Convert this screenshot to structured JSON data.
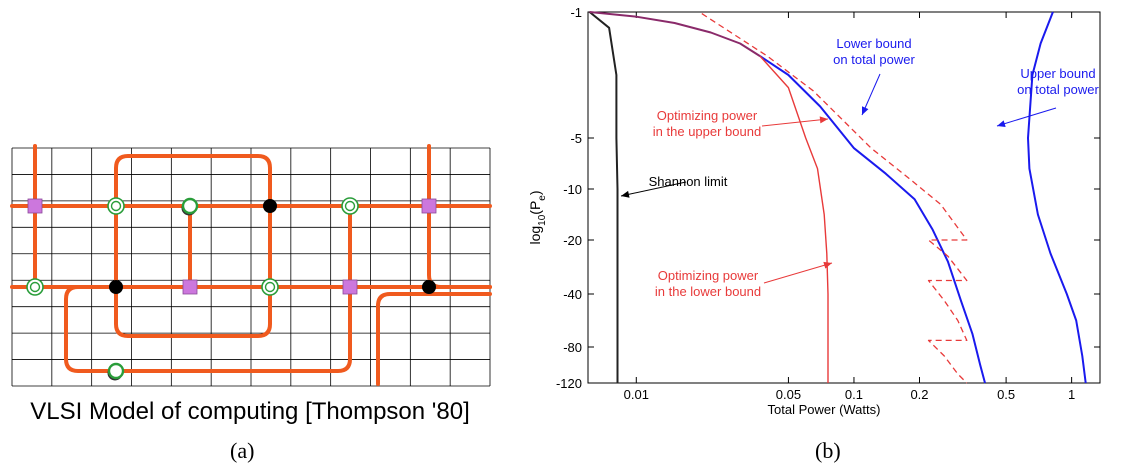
{
  "panel_a": {
    "caption": "VLSI Model of computing [Thompson '80]",
    "label": "(a)",
    "colors": {
      "wire": "#f05a1e",
      "grid": "#000000",
      "square_node": "#cc77dd",
      "ring_node": "#2a9d3a",
      "dot_node": "#000000"
    }
  },
  "panel_b": {
    "label": "(b)",
    "chart_data": {
      "type": "line",
      "title": "",
      "xlabel": "Total Power (Watts)",
      "ylabel": "log10(Pe)",
      "ylabel_main": "log",
      "ylabel_sub1": "10",
      "ylabel_mid": "(P",
      "ylabel_sub2": "e",
      "ylabel_end": ")",
      "xscale": "log",
      "xlim": [
        0.006,
        1.35
      ],
      "xticks": [
        "0.01",
        "0.05",
        "0.1",
        "0.2",
        "0.5",
        "1"
      ],
      "yticks": [
        "-1",
        "-5",
        "-10",
        "-20",
        "-40",
        "-80",
        "-120"
      ],
      "series": [
        {
          "color": "#222222",
          "style": "solid",
          "points": [
            [
              0.0061,
              -1
            ],
            [
              0.0075,
              -1.5
            ],
            [
              0.0081,
              -3
            ],
            [
              0.0081,
              -5
            ],
            [
              0.0082,
              -10
            ],
            [
              0.0082,
              -20
            ],
            [
              0.0082,
              -40
            ],
            [
              0.0082,
              -80
            ],
            [
              0.0082,
              -120
            ]
          ]
        },
        {
          "color": "#8a2a6a",
          "style": "solid",
          "points": [
            [
              0.0061,
              -1
            ],
            [
              0.01,
              -1.15
            ],
            [
              0.015,
              -1.35
            ],
            [
              0.022,
              -1.65
            ],
            [
              0.03,
              -2.0
            ],
            [
              0.037,
              -2.4
            ]
          ]
        },
        {
          "color": "#1a1aee",
          "style": "solid",
          "points": [
            [
              0.037,
              -2.4
            ],
            [
              0.05,
              -3.0
            ],
            [
              0.07,
              -4.0
            ],
            [
              0.1,
              -6.0
            ],
            [
              0.14,
              -8.5
            ],
            [
              0.19,
              -12
            ],
            [
              0.23,
              -18
            ],
            [
              0.27,
              -28
            ],
            [
              0.31,
              -45
            ],
            [
              0.35,
              -70
            ],
            [
              0.38,
              -100
            ],
            [
              0.4,
              -120
            ]
          ]
        },
        {
          "color": "#1a1aee",
          "style": "solid",
          "points": [
            [
              0.82,
              -1
            ],
            [
              0.72,
              -2.0
            ],
            [
              0.66,
              -3.0
            ],
            [
              0.63,
              -5
            ],
            [
              0.64,
              -8
            ],
            [
              0.7,
              -15
            ],
            [
              0.8,
              -25
            ],
            [
              0.95,
              -40
            ],
            [
              1.05,
              -60
            ],
            [
              1.12,
              -90
            ],
            [
              1.16,
              -120
            ]
          ]
        },
        {
          "color": "#e83a3a",
          "style": "solid",
          "width": 1.4,
          "points": [
            [
              0.037,
              -2.4
            ],
            [
              0.05,
              -3.4
            ],
            [
              0.06,
              -5
            ],
            [
              0.068,
              -8
            ],
            [
              0.073,
              -15
            ],
            [
              0.075,
              -25
            ],
            [
              0.076,
              -40
            ],
            [
              0.076,
              -80
            ],
            [
              0.076,
              -120
            ]
          ]
        },
        {
          "color": "#e83a3a",
          "style": "dashed",
          "width": 1.3,
          "points": [
            [
              0.02,
              -1.05
            ],
            [
              0.04,
              -2.4
            ],
            [
              0.065,
              -3.5
            ],
            [
              0.12,
              -6
            ],
            [
              0.18,
              -9
            ],
            [
              0.25,
              -13
            ],
            [
              0.33,
              -20
            ],
            [
              0.22,
              -20
            ],
            [
              0.27,
              -26
            ],
            [
              0.33,
              -35
            ],
            [
              0.22,
              -35
            ],
            [
              0.26,
              -45
            ],
            [
              0.3,
              -60
            ],
            [
              0.33,
              -75
            ],
            [
              0.22,
              -75
            ],
            [
              0.26,
              -90
            ],
            [
              0.3,
              -110
            ],
            [
              0.33,
              -120
            ]
          ]
        }
      ],
      "annotations": [
        {
          "text": "Lower bound",
          "text2": "on total power",
          "color": "#1a1aee"
        },
        {
          "text": "Upper bound",
          "text2": "on total power",
          "color": "#1a1aee"
        },
        {
          "text": "Optimizing power",
          "text2": "in the upper bound",
          "color": "#e83a3a"
        },
        {
          "text": "Shannon limit",
          "text2": "",
          "color": "#000000"
        },
        {
          "text": "Optimizing power",
          "text2": "in the lower bound",
          "color": "#e83a3a"
        }
      ]
    }
  }
}
